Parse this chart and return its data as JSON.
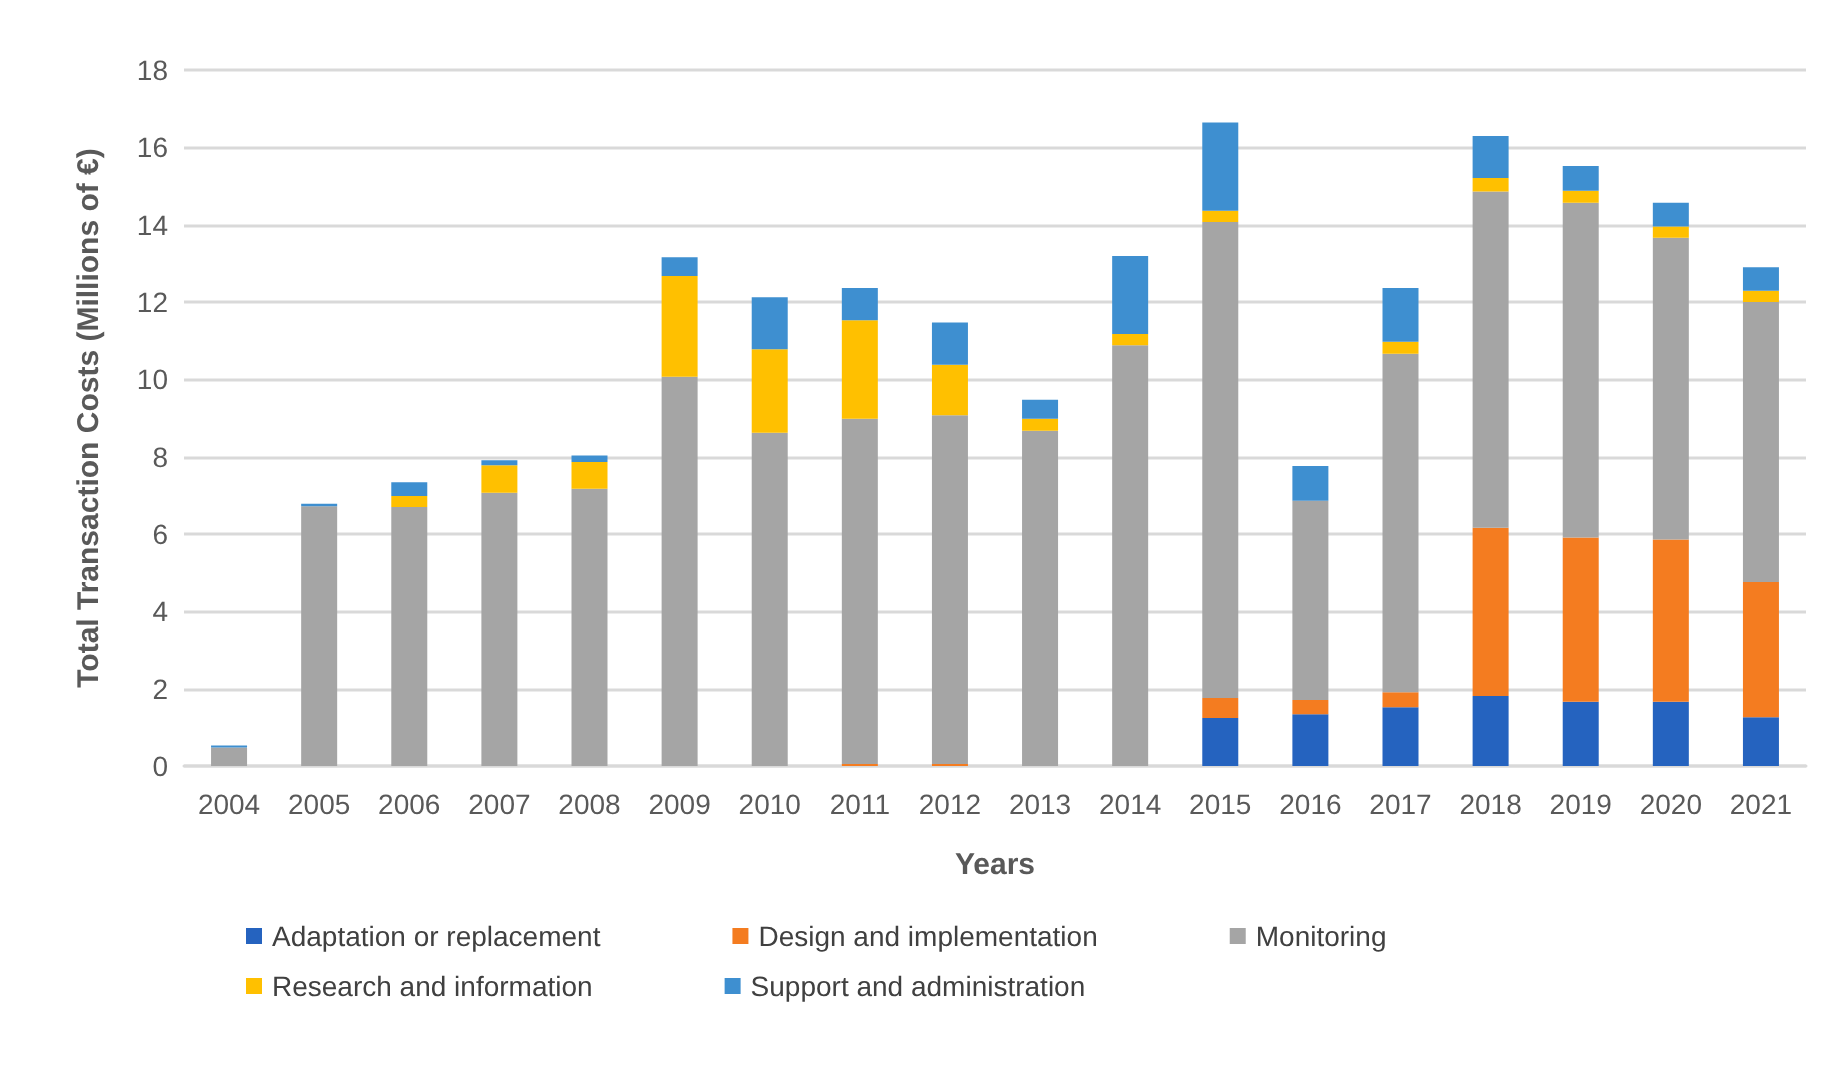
{
  "chart_data": {
    "type": "bar",
    "stacked": true,
    "xlabel": "Years",
    "ylabel": "Total Transaction Costs (Millions of €)",
    "categories": [
      "2004",
      "2005",
      "2006",
      "2007",
      "2008",
      "2009",
      "2010",
      "2011",
      "2012",
      "2013",
      "2014",
      "2015",
      "2016",
      "2017",
      "2018",
      "2019",
      "2020",
      "2021"
    ],
    "ylim": [
      0,
      18
    ],
    "yticks": [
      0,
      2,
      4,
      6,
      8,
      10,
      12,
      14,
      16,
      18
    ],
    "grid": "y",
    "legend": "bottom",
    "series": [
      {
        "name": "Adaptation or replacement",
        "color": "#2563bf",
        "values": [
          0,
          0,
          0,
          0,
          0,
          0,
          0,
          0,
          0,
          0,
          0,
          1.24,
          1.34,
          1.52,
          1.81,
          1.66,
          1.66,
          1.26
        ]
      },
      {
        "name": "Design and implementation",
        "color": "#f47c20",
        "values": [
          0,
          0,
          0,
          0,
          0,
          0,
          0,
          0.05,
          0.05,
          0,
          0,
          0.52,
          0.37,
          0.39,
          4.35,
          4.25,
          4.2,
          3.5
        ]
      },
      {
        "name": "Monitoring",
        "color": "#a5a5a5",
        "values": [
          0.48,
          6.72,
          6.7,
          7.07,
          7.17,
          10.07,
          8.62,
          8.93,
          9.02,
          8.67,
          10.88,
          12.31,
          5.15,
          8.75,
          8.7,
          8.66,
          7.8,
          7.24
        ]
      },
      {
        "name": "Research and information",
        "color": "#ffc000",
        "values": [
          0,
          0,
          0.28,
          0.71,
          0.69,
          2.6,
          2.16,
          2.55,
          1.31,
          0.31,
          0.29,
          0.29,
          0,
          0.31,
          0.35,
          0.31,
          0.29,
          0.29
        ]
      },
      {
        "name": "Support and administration",
        "color": "#3e8fd0",
        "values": [
          0.05,
          0.06,
          0.36,
          0.13,
          0.17,
          0.49,
          1.34,
          0.83,
          1.09,
          0.49,
          2.02,
          2.28,
          0.9,
          1.39,
          1.08,
          0.64,
          0.62,
          0.61
        ]
      }
    ]
  }
}
